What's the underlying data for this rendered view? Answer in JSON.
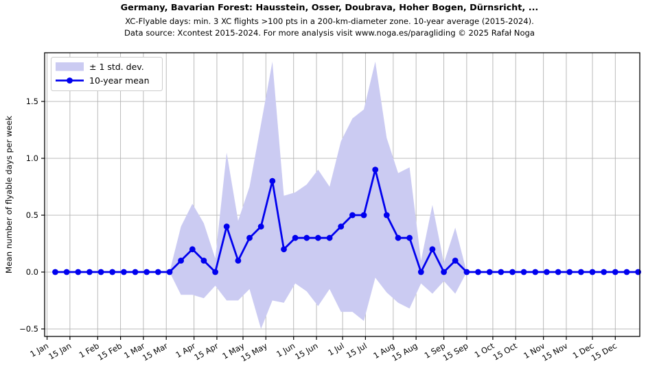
{
  "header": {
    "title": "Germany, Bavarian Forest: Hausstein, Osser, Doubrava, Hoher Bogen, Dürnsricht, ...",
    "subtitle": "XC-Flyable days: min. 3 XC flights >100 pts in a 200-km-diameter zone. 10-year average (2015-2024).",
    "source": "Data source: Xcontest 2015-2024. For more analysis visit www.noga.es/paragliding © 2025 Rafał Noga"
  },
  "chart_data": {
    "type": "line",
    "title": "Germany, Bavarian Forest: Hausstein, Osser, Doubrava, Hoher Bogen, Dürnsricht, ...",
    "xlabel": "",
    "ylabel": "Mean number of flyable days per week",
    "ylim": [
      -0.566,
      1.928
    ],
    "xlim_days": [
      -1.5,
      363
    ],
    "grid": true,
    "legend_position": "upper left",
    "legend": [
      {
        "type": "band",
        "label": "± 1 std. dev."
      },
      {
        "type": "line",
        "label": "10-year mean"
      }
    ],
    "x_days": [
      5,
      12,
      19,
      26,
      33,
      40,
      47,
      54,
      61,
      68,
      75,
      82,
      89,
      96,
      103,
      110,
      117,
      124,
      131,
      138,
      145,
      152,
      159,
      166,
      173,
      180,
      187,
      194,
      201,
      208,
      215,
      222,
      229,
      236,
      243,
      250,
      257,
      264,
      271,
      278,
      285,
      292,
      299,
      306,
      313,
      320,
      327,
      334,
      341,
      348,
      355,
      362
    ],
    "series": [
      {
        "name": "10-year mean",
        "values": [
          0,
          0,
          0,
          0,
          0,
          0,
          0,
          0,
          0,
          0,
          0,
          0.1,
          0.2,
          0.1,
          0,
          0.4,
          0.1,
          0.3,
          0.4,
          0.8,
          0.2,
          0.3,
          0.3,
          0.3,
          0.3,
          0.4,
          0.5,
          0.5,
          0.9,
          0.5,
          0.3,
          0.3,
          0,
          0.2,
          0,
          0.1,
          0,
          0,
          0,
          0,
          0,
          0,
          0,
          0,
          0,
          0,
          0,
          0,
          0,
          0,
          0,
          0
        ]
      },
      {
        "name": "std dev",
        "values": [
          0,
          0,
          0,
          0,
          0,
          0,
          0,
          0,
          0,
          0,
          0,
          0.3,
          0.4,
          0.33,
          0.12,
          0.65,
          0.35,
          0.45,
          0.9,
          1.05,
          0.47,
          0.4,
          0.47,
          0.6,
          0.45,
          0.75,
          0.85,
          0.93,
          0.95,
          0.68,
          0.57,
          0.62,
          0.1,
          0.39,
          0.08,
          0.29,
          0,
          0,
          0,
          0,
          0,
          0,
          0,
          0,
          0,
          0,
          0,
          0,
          0,
          0,
          0,
          0
        ]
      }
    ],
    "x_ticks": [
      {
        "label": "1 Jan",
        "day": 0
      },
      {
        "label": "15 Jan",
        "day": 14
      },
      {
        "label": "1 Feb",
        "day": 31
      },
      {
        "label": "15 Feb",
        "day": 45
      },
      {
        "label": "1 Mar",
        "day": 59
      },
      {
        "label": "15 Mar",
        "day": 73
      },
      {
        "label": "1 Apr",
        "day": 90
      },
      {
        "label": "15 Apr",
        "day": 104
      },
      {
        "label": "1 May",
        "day": 120
      },
      {
        "label": "15 May",
        "day": 134
      },
      {
        "label": "1 Jun",
        "day": 151
      },
      {
        "label": "15 Jun",
        "day": 165
      },
      {
        "label": "1 Jul",
        "day": 181
      },
      {
        "label": "15 Jul",
        "day": 195
      },
      {
        "label": "1 Aug",
        "day": 212
      },
      {
        "label": "15 Aug",
        "day": 226
      },
      {
        "label": "1 Sep",
        "day": 243
      },
      {
        "label": "15 Sep",
        "day": 257
      },
      {
        "label": "1 Oct",
        "day": 273
      },
      {
        "label": "15 Oct",
        "day": 287
      },
      {
        "label": "1 Nov",
        "day": 304
      },
      {
        "label": "15 Nov",
        "day": 318
      },
      {
        "label": "1 Dec",
        "day": 334
      },
      {
        "label": "15 Dec",
        "day": 348
      }
    ],
    "y_ticks": [
      {
        "label": "−0.5",
        "value": -0.5
      },
      {
        "label": "0.0",
        "value": 0.0
      },
      {
        "label": "0.5",
        "value": 0.5
      },
      {
        "label": "1.0",
        "value": 1.0
      },
      {
        "label": "1.5",
        "value": 1.5
      }
    ],
    "colors": {
      "mean_line": "#0000ee",
      "std_band": "#cbcbf2",
      "grid": "#b2b2b2",
      "spine": "#000000",
      "text": "#000000",
      "legend_border": "#cccccc",
      "background": "#ffffff"
    }
  }
}
